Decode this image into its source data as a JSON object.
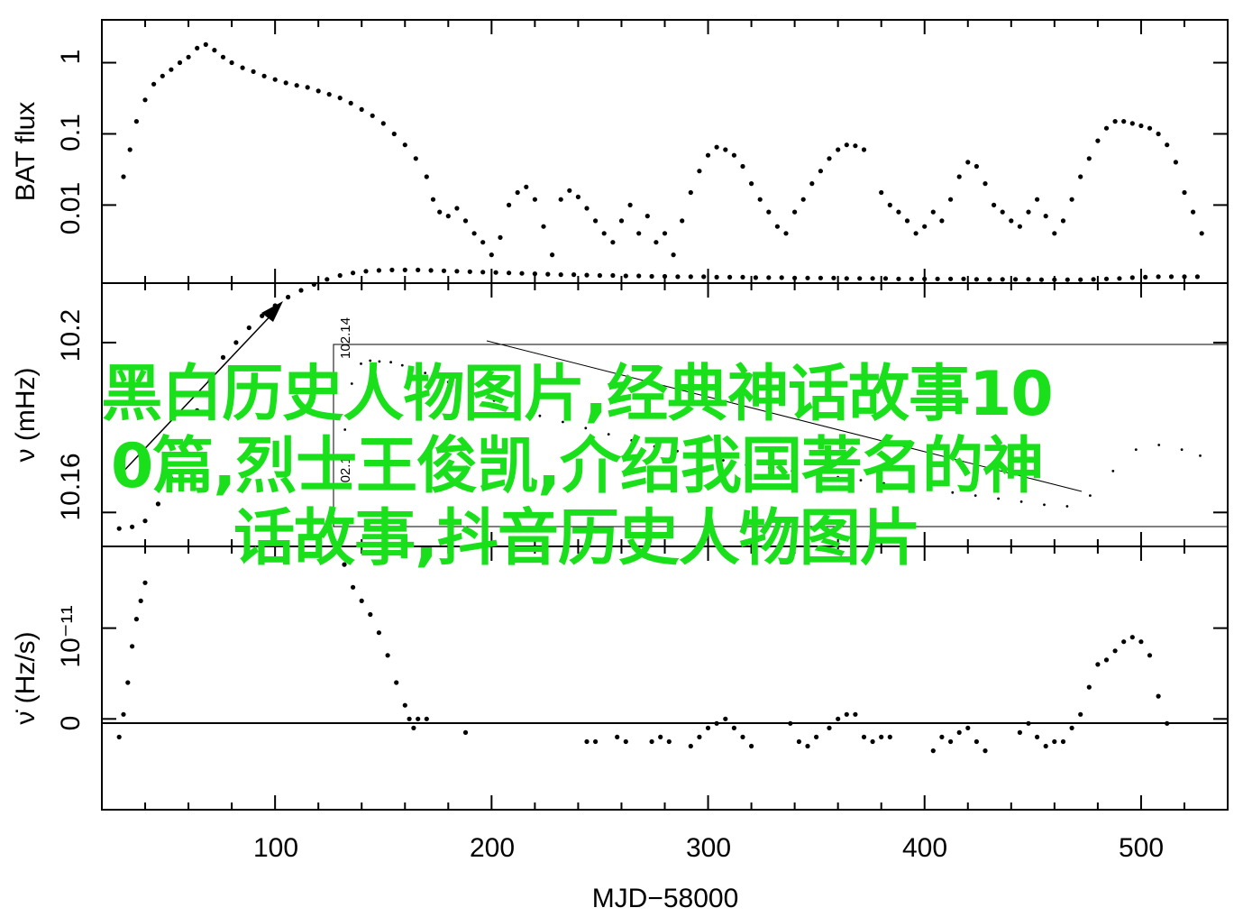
{
  "overlay": {
    "line1": "黑白历史人物图片,经典神话故事10",
    "line2": "0篇,烈士王俊凯,介绍我国著名的神",
    "line3": "话故事,抖音历史人物图片"
  },
  "colors": {
    "points": "#000000",
    "overlay": "#19e01a",
    "axes": "#000000"
  },
  "chart_data": [
    {
      "type": "scatter",
      "panel": "top",
      "ylabel": "BAT flux",
      "yscale": "log",
      "ylim": [
        0.0008,
        4
      ],
      "xlim": [
        20,
        540
      ],
      "ytick_labels": [
        "0.01",
        "0.1",
        "1"
      ],
      "yticks": [
        0.01,
        0.1,
        1
      ],
      "series": [
        {
          "x": [
            30,
            33,
            36,
            40,
            44,
            48,
            52,
            56,
            60,
            64,
            68,
            72,
            76,
            80,
            85,
            90,
            95,
            100,
            105,
            110,
            115,
            120,
            125,
            130,
            135,
            140,
            145,
            150,
            155,
            160,
            165,
            170,
            173,
            176,
            180,
            184,
            188,
            192,
            196,
            200,
            204,
            208,
            212,
            216,
            220,
            224,
            228,
            232,
            236,
            240,
            244,
            248,
            252,
            256,
            260,
            264,
            268,
            272,
            276,
            280,
            284,
            288,
            292,
            296,
            300,
            304,
            308,
            312,
            316,
            320,
            324,
            328,
            332,
            336,
            340,
            344,
            348,
            352,
            356,
            360,
            364,
            368,
            372,
            380,
            384,
            388,
            392,
            396,
            400,
            404,
            408,
            412,
            416,
            420,
            424,
            428,
            432,
            436,
            440,
            444,
            448,
            452,
            456,
            460,
            464,
            468,
            472,
            476,
            480,
            484,
            488,
            492,
            496,
            500,
            504,
            508,
            512,
            516,
            520,
            524,
            528
          ],
          "y": [
            0.025,
            0.06,
            0.15,
            0.3,
            0.5,
            0.65,
            0.8,
            1.0,
            1.2,
            1.6,
            1.8,
            1.5,
            1.2,
            1.0,
            0.85,
            0.75,
            0.65,
            0.58,
            0.52,
            0.48,
            0.45,
            0.4,
            0.36,
            0.32,
            0.27,
            0.22,
            0.18,
            0.14,
            0.1,
            0.07,
            0.045,
            0.025,
            0.012,
            0.008,
            0.007,
            0.009,
            0.006,
            0.004,
            0.003,
            0.002,
            0.0035,
            0.01,
            0.015,
            0.018,
            0.012,
            0.005,
            0.002,
            0.012,
            0.016,
            0.013,
            0.009,
            0.006,
            0.004,
            0.003,
            0.006,
            0.01,
            0.004,
            0.007,
            0.003,
            0.004,
            0.002,
            0.006,
            0.015,
            0.03,
            0.05,
            0.065,
            0.06,
            0.05,
            0.035,
            0.02,
            0.012,
            0.008,
            0.005,
            0.004,
            0.008,
            0.012,
            0.02,
            0.03,
            0.045,
            0.06,
            0.07,
            0.068,
            0.06,
            0.015,
            0.01,
            0.008,
            0.006,
            0.004,
            0.005,
            0.008,
            0.006,
            0.012,
            0.025,
            0.04,
            0.035,
            0.02,
            0.01,
            0.008,
            0.006,
            0.005,
            0.008,
            0.012,
            0.007,
            0.004,
            0.006,
            0.012,
            0.025,
            0.045,
            0.08,
            0.12,
            0.15,
            0.15,
            0.14,
            0.13,
            0.12,
            0.1,
            0.07,
            0.04,
            0.015,
            0.008,
            0.004
          ]
        }
      ]
    },
    {
      "type": "scatter",
      "panel": "middle",
      "ylabel": "ν (mHz)",
      "ytick_labels": [
        "10.16",
        "10.2"
      ],
      "yticks": [
        10.16,
        10.2
      ],
      "ylim": [
        10.152,
        10.214
      ],
      "xlim": [
        20,
        540
      ],
      "series": [
        {
          "x": [
            28,
            34,
            40,
            46,
            52,
            58,
            64,
            70,
            76,
            82,
            88,
            94,
            100,
            106,
            112,
            118,
            124,
            130,
            136,
            142,
            148,
            154,
            160,
            166,
            172,
            178,
            184,
            190,
            196,
            202,
            208,
            214,
            220,
            226,
            232,
            238,
            244,
            250,
            256,
            262,
            268,
            274,
            280,
            286,
            292,
            298,
            304,
            310,
            316,
            322,
            328,
            334,
            340,
            346,
            352,
            358,
            364,
            370,
            376,
            382,
            388,
            394,
            400,
            406,
            412,
            418,
            424,
            430,
            436,
            442,
            448,
            454,
            460,
            466,
            472,
            478,
            484,
            490,
            496,
            502,
            508,
            514,
            520,
            526
          ],
          "y": [
            10.1562,
            10.1566,
            10.158,
            10.162,
            10.168,
            10.176,
            10.184,
            10.191,
            10.1965,
            10.2,
            10.2035,
            10.2063,
            10.2087,
            10.2107,
            10.2123,
            10.2137,
            10.2149,
            10.2158,
            10.2164,
            10.2168,
            10.217,
            10.2171,
            10.2171,
            10.2171,
            10.217,
            10.2169,
            10.2168,
            10.2167,
            10.2166,
            10.2165,
            10.2164,
            10.2163,
            10.2162,
            10.2161,
            10.216,
            10.216,
            10.2159,
            10.2158,
            10.2158,
            10.2157,
            10.2157,
            10.2156,
            10.2156,
            10.2155,
            10.2155,
            10.2155,
            10.2154,
            10.2154,
            10.2154,
            10.2153,
            10.2153,
            10.2153,
            10.2152,
            10.2152,
            10.2152,
            10.2152,
            10.2151,
            10.2151,
            10.2151,
            10.2151,
            10.215,
            10.215,
            10.215,
            10.215,
            10.215,
            10.215,
            10.2149,
            10.2149,
            10.2149,
            10.2149,
            10.2149,
            10.2148,
            10.2148,
            10.2148,
            10.2148,
            10.2149,
            10.215,
            10.2151,
            10.2153,
            10.2154,
            10.2155,
            10.2155,
            10.2155,
            10.2155
          ]
        }
      ],
      "inset": {
        "ytick_labels": [
          "102.14",
          "102.1"
        ],
        "series": [
          {
            "x": [
              155,
              158,
              162,
              166,
              170,
              175,
              180,
              190,
              200,
              210,
              220,
              230,
              240,
              250,
              260,
              270,
              280,
              290,
              300,
              310,
              320,
              330,
              340,
              350,
              360,
              370,
              380,
              390,
              400,
              410,
              420,
              430,
              440,
              450,
              460,
              470,
              480,
              490,
              500,
              510,
              520,
              528
            ],
            "y": [
              0.55,
              0.85,
              0.98,
              1.0,
              0.995,
              0.99,
              0.97,
              0.92,
              0.86,
              0.8,
              0.74,
              0.69,
              0.64,
              0.6,
              0.56,
              0.52,
              0.48,
              0.44,
              0.41,
              0.38,
              0.35,
              0.32,
              0.3,
              0.28,
              0.26,
              0.24,
              0.22,
              0.2,
              0.18,
              0.16,
              0.14,
              0.12,
              0.1,
              0.08,
              0.06,
              0.05,
              0.12,
              0.28,
              0.42,
              0.45,
              0.42,
              0.38
            ]
          }
        ]
      }
    },
    {
      "type": "scatter",
      "panel": "bottom",
      "ylabel": "ν̇ (Hz/s)",
      "xlabel": "MJD−58000",
      "ytick_labels": [
        "0",
        "10⁻¹¹"
      ],
      "yticks": [
        0,
        1
      ],
      "ylim": [
        -1,
        1.9
      ],
      "xlim": [
        20,
        540
      ],
      "xtick_labels": [
        "100",
        "200",
        "300",
        "400",
        "500"
      ],
      "xticks": [
        100,
        200,
        300,
        400,
        500
      ],
      "series": [
        {
          "x": [
            28,
            30,
            32,
            34,
            36,
            38,
            40,
            132,
            136,
            140,
            144,
            148,
            152,
            156,
            160,
            162,
            164,
            166,
            170,
            188,
            244,
            248,
            258,
            262,
            274,
            278,
            282,
            292,
            296,
            300,
            304,
            308,
            312,
            316,
            320,
            338,
            342,
            346,
            350,
            356,
            360,
            364,
            368,
            372,
            376,
            380,
            384,
            404,
            408,
            412,
            416,
            420,
            424,
            428,
            444,
            448,
            452,
            456,
            460,
            464,
            468,
            472,
            476,
            480,
            484,
            488,
            492,
            496,
            500,
            504,
            508,
            512
          ],
          "y": [
            -0.2,
            0.05,
            0.4,
            0.8,
            1.1,
            1.3,
            1.5,
            1.7,
            1.45,
            1.3,
            1.15,
            0.95,
            0.7,
            0.4,
            0.15,
            0.0,
            -0.1,
            0.0,
            0.0,
            -0.15,
            -0.25,
            -0.25,
            -0.2,
            -0.25,
            -0.25,
            -0.2,
            -0.25,
            -0.3,
            -0.2,
            -0.1,
            -0.05,
            0.0,
            -0.1,
            -0.2,
            -0.3,
            -0.05,
            -0.25,
            -0.3,
            -0.2,
            -0.1,
            0.0,
            0.05,
            0.05,
            -0.2,
            -0.25,
            -0.2,
            -0.2,
            -0.35,
            -0.2,
            -0.25,
            -0.15,
            -0.1,
            -0.25,
            -0.35,
            -0.15,
            -0.05,
            -0.2,
            -0.3,
            -0.25,
            -0.25,
            -0.1,
            0.05,
            0.35,
            0.6,
            0.65,
            0.75,
            0.85,
            0.9,
            0.85,
            0.7,
            0.25,
            -0.05
          ]
        }
      ]
    }
  ]
}
